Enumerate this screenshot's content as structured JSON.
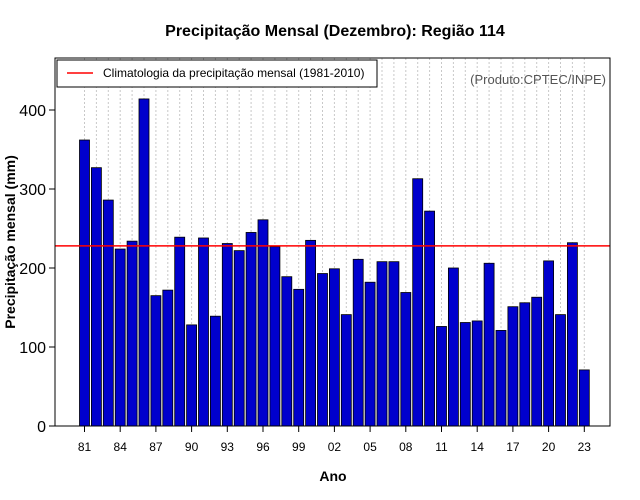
{
  "chart_data": {
    "type": "bar",
    "title": "Precipitação Mensal (Dezembro): Região 114",
    "xlabel": "Ano",
    "ylabel": "Precipitação mensal (mm)",
    "ylim": [
      0,
      460
    ],
    "yticks": [
      0,
      100,
      200,
      300,
      400
    ],
    "categories": [
      "81",
      "82",
      "83",
      "84",
      "85",
      "86",
      "87",
      "88",
      "89",
      "90",
      "91",
      "92",
      "93",
      "94",
      "95",
      "96",
      "97",
      "98",
      "99",
      "00",
      "01",
      "02",
      "03",
      "04",
      "05",
      "06",
      "07",
      "08",
      "09",
      "10",
      "11",
      "12",
      "13",
      "14",
      "15",
      "16",
      "17",
      "18",
      "19",
      "20",
      "21",
      "22",
      "23"
    ],
    "xtick_labels": [
      "81",
      "84",
      "87",
      "90",
      "93",
      "96",
      "99",
      "02",
      "05",
      "08",
      "11",
      "14",
      "17",
      "20",
      "23"
    ],
    "values": [
      362,
      327,
      286,
      224,
      234,
      414,
      165,
      172,
      239,
      128,
      238,
      139,
      231,
      222,
      245,
      261,
      227,
      189,
      173,
      235,
      193,
      199,
      141,
      211,
      182,
      208,
      208,
      169,
      313,
      272,
      126,
      200,
      131,
      133,
      206,
      121,
      151,
      156,
      163,
      209,
      141,
      232,
      71
    ],
    "bar_color": "#0000cd",
    "reference_line": {
      "label": "Climatologia da precipitação mensal (1981-2010)",
      "value": 228,
      "color": "#ff0000"
    },
    "legend_position": "top-left",
    "grid": "vertical dotted",
    "source_note": "(Produto:CPTEC/INPE)"
  }
}
